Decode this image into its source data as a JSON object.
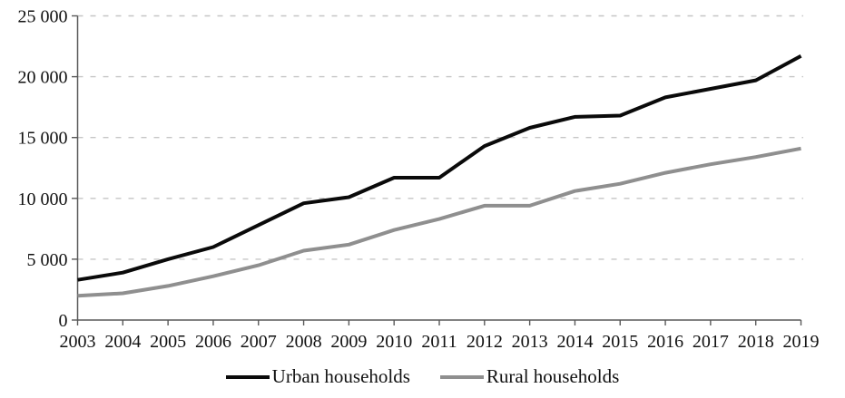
{
  "figure": {
    "background_color": "#ffffff",
    "text_color": "#111111"
  },
  "chart_data": {
    "type": "line",
    "title": "",
    "xlabel": "",
    "ylabel": "",
    "x_labels": [
      "2003",
      "2004",
      "2005",
      "2006",
      "2007",
      "2008",
      "2009",
      "2010",
      "2011",
      "2012",
      "2013",
      "2014",
      "2015",
      "2016",
      "2017",
      "2018",
      "2019"
    ],
    "series": [
      {
        "name": "Urban households",
        "color": "#0a0a0a",
        "values": [
          3300,
          3900,
          5000,
          6000,
          7800,
          9600,
          10100,
          11700,
          11700,
          14300,
          15800,
          16700,
          16800,
          18300,
          19000,
          19700,
          21700
        ]
      },
      {
        "name": "Rural households",
        "color": "#8f8f8f",
        "values": [
          2000,
          2200,
          2800,
          3600,
          4500,
          5700,
          6200,
          7400,
          8300,
          9400,
          9400,
          10600,
          11200,
          12100,
          12800,
          13400,
          14100
        ]
      }
    ],
    "ylim": [
      0,
      25000
    ],
    "y_ticks": [
      0,
      5000,
      10000,
      15000,
      20000,
      25000
    ],
    "y_tick_labels": [
      "0",
      "5 000",
      "10 000",
      "15 000",
      "20 000",
      "25 000"
    ],
    "grid": "horizontal-dashed",
    "gridline_color": "#c6c6c6",
    "axis_color": "#595959",
    "line_width": 4,
    "legend_position": "bottom-center"
  }
}
